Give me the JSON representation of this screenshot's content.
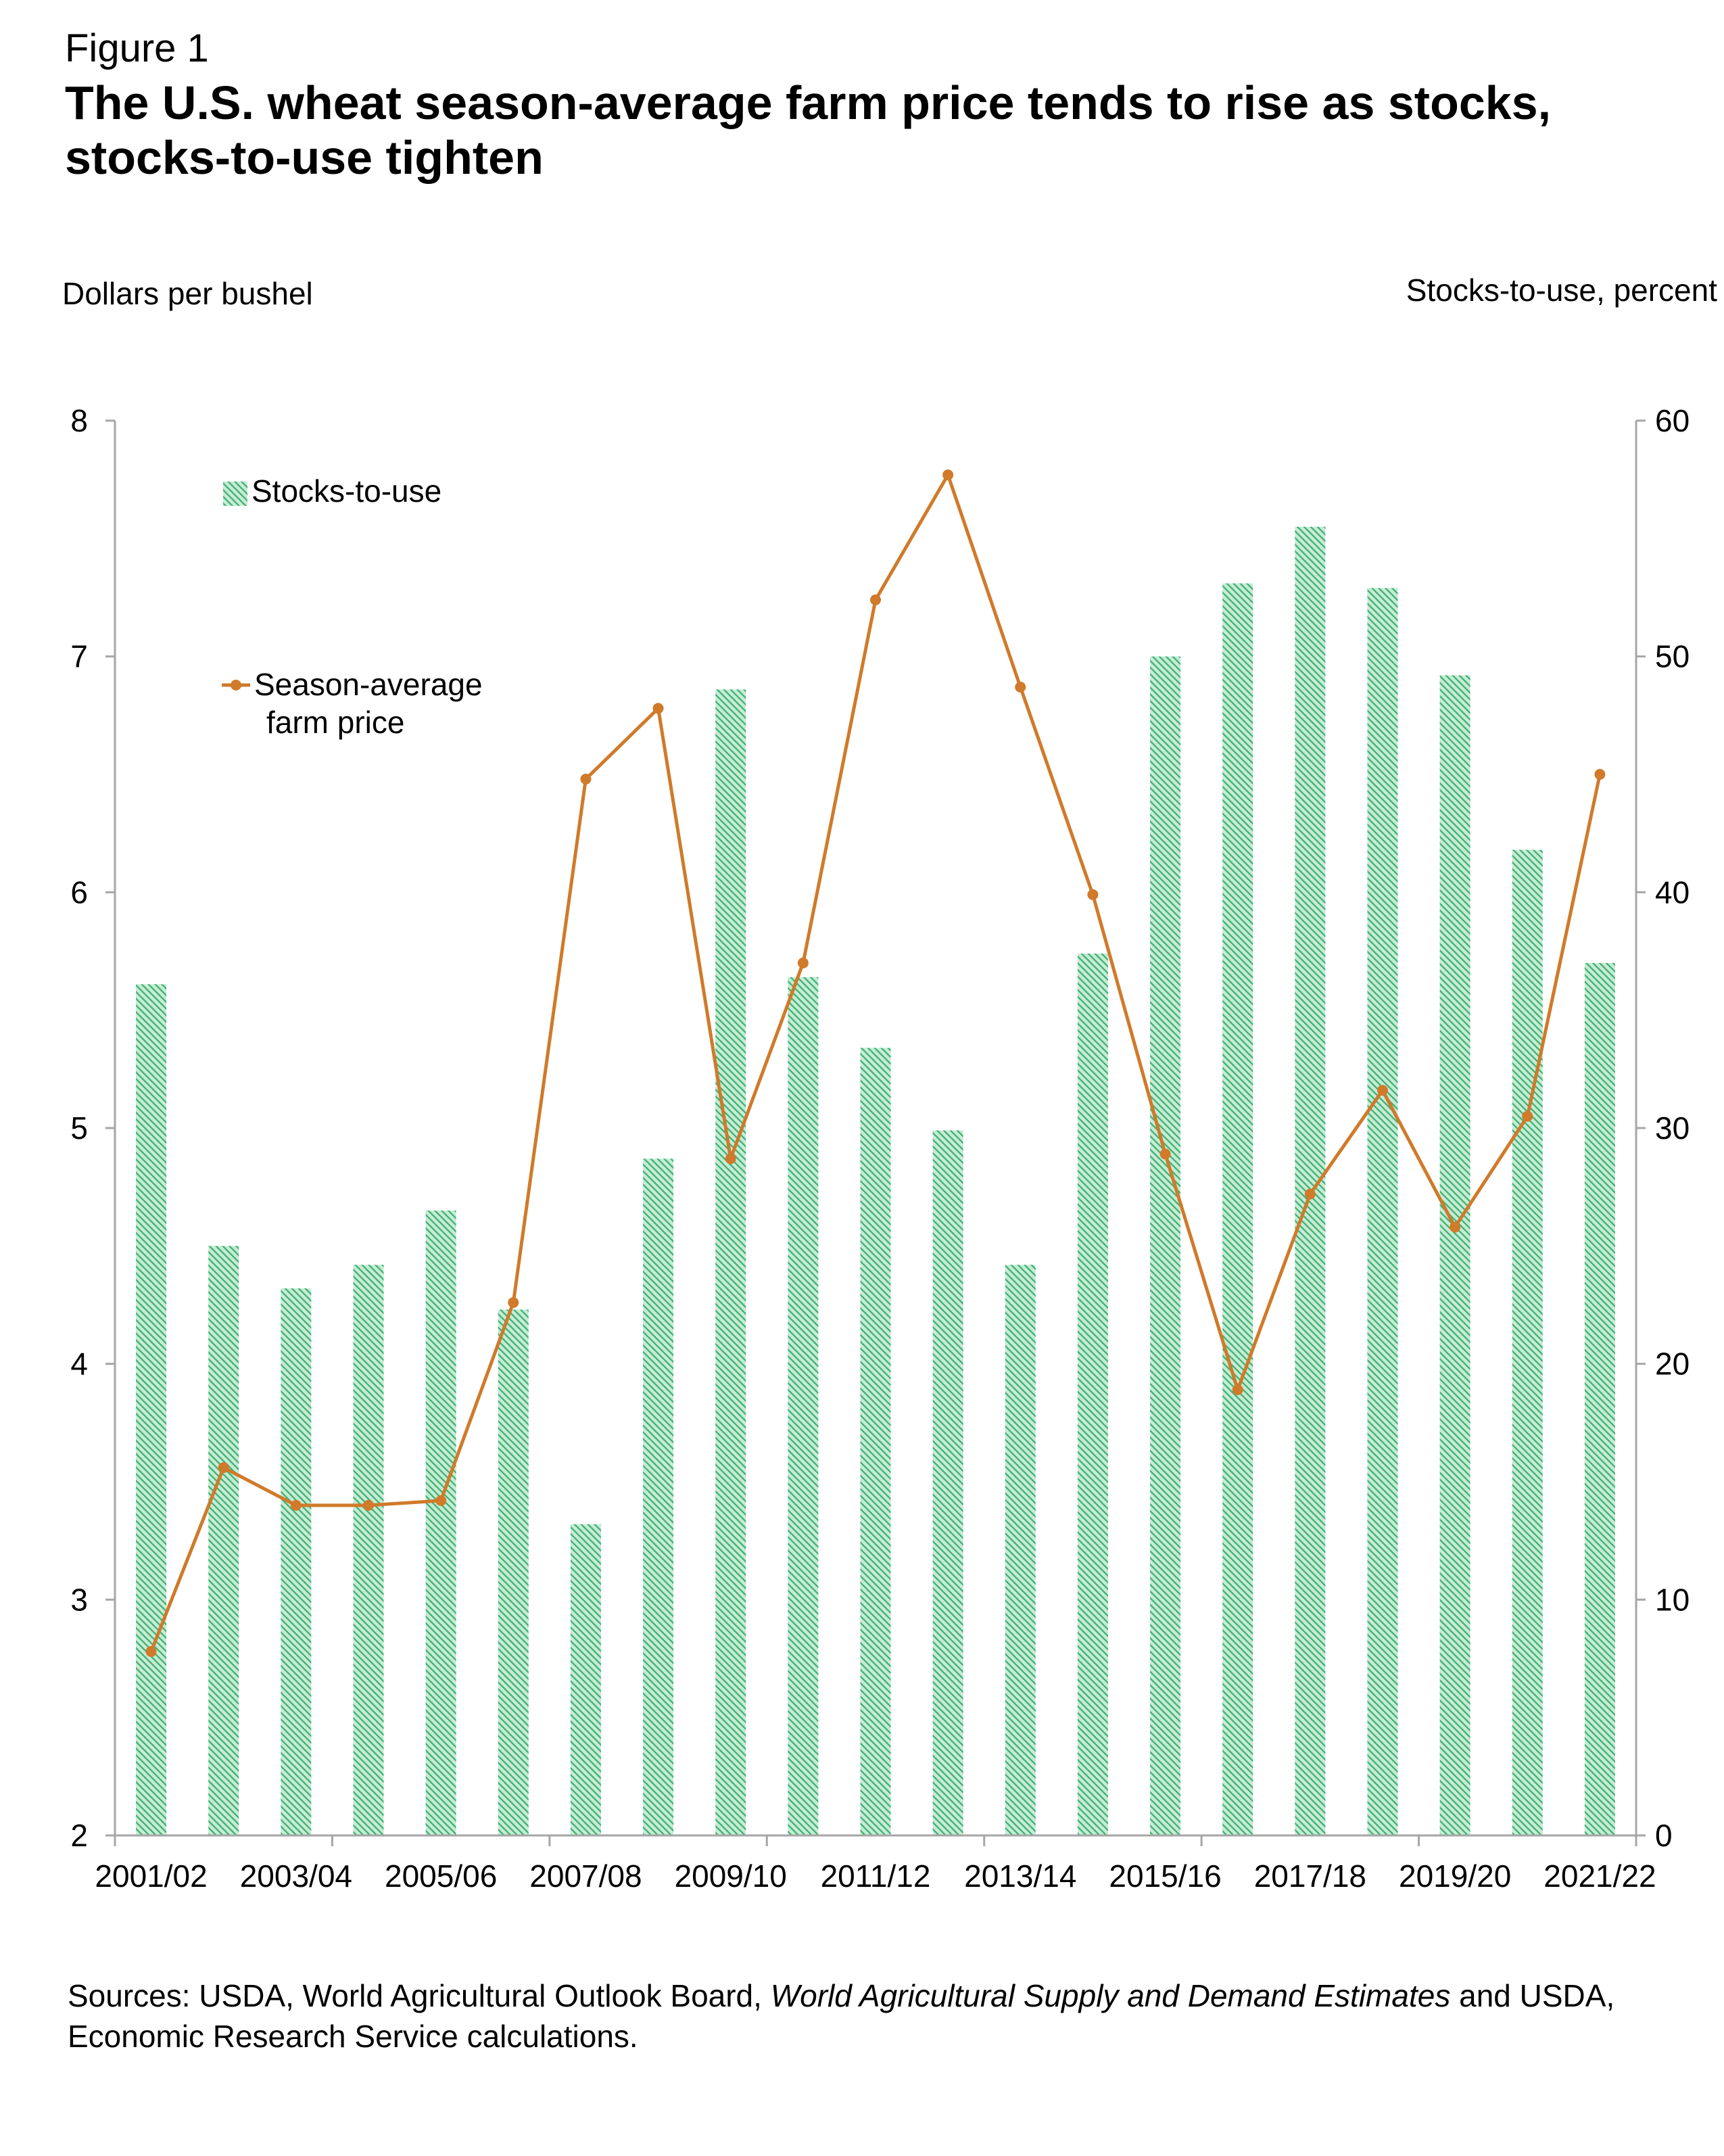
{
  "figure_label": "Figure 1",
  "title": "The U.S. wheat season-average farm price tends to rise as stocks, stocks-to-use tighten",
  "sources": {
    "prefix": "Sources: USDA, World Agricultural Outlook Board, ",
    "italic": "World Agricultural Supply and Demand Estimates",
    "suffix": " and USDA, Economic Research Service calculations."
  },
  "colors": {
    "bar": "#3cb371",
    "line": "#d07a2a",
    "axis": "#a6a6a6"
  },
  "chart_data": {
    "type": "bar+line",
    "left_axis_label": "Dollars per bushel",
    "right_axis_label": "Stocks-to-use, percent",
    "left_ylim": [
      2,
      8
    ],
    "left_ticks": [
      2,
      3,
      4,
      5,
      6,
      7,
      8
    ],
    "right_ylim": [
      0,
      60
    ],
    "right_ticks": [
      0,
      10,
      20,
      30,
      40,
      50,
      60
    ],
    "categories": [
      "2001/02",
      "2002/03",
      "2003/04",
      "2004/05",
      "2005/06",
      "2006/07",
      "2007/08",
      "2008/09",
      "2009/10",
      "2010/11",
      "2011/12",
      "2012/13",
      "2013/14",
      "2014/15",
      "2015/16",
      "2016/17",
      "2017/18",
      "2018/19",
      "2019/20",
      "2020/21",
      "2021/22"
    ],
    "category_tick_labels": [
      "2001/02",
      "",
      "2003/04",
      "",
      "2005/06",
      "",
      "2007/08",
      "",
      "2009/10",
      "",
      "2011/12",
      "",
      "2013/14",
      "",
      "2015/16",
      "",
      "2017/18",
      "",
      "2019/20",
      "",
      "2021/22"
    ],
    "grid": false,
    "legend_position": "top-left",
    "series": [
      {
        "name": "Stocks-to-use",
        "type": "bar",
        "axis": "right",
        "pattern": "hatched",
        "values": [
          36.1,
          25.0,
          23.2,
          24.2,
          26.5,
          22.3,
          13.2,
          28.7,
          48.6,
          36.4,
          33.4,
          29.9,
          24.2,
          37.4,
          50.0,
          53.1,
          55.5,
          52.9,
          49.2,
          41.8,
          37.0
        ]
      },
      {
        "name": "Season-average farm price",
        "type": "line",
        "axis": "left",
        "marker": "circle",
        "values": [
          2.78,
          3.56,
          3.4,
          3.4,
          3.42,
          4.26,
          6.48,
          6.78,
          4.87,
          5.7,
          7.24,
          7.77,
          6.87,
          5.99,
          4.89,
          3.89,
          4.72,
          5.16,
          4.58,
          5.05,
          6.5
        ]
      }
    ]
  }
}
